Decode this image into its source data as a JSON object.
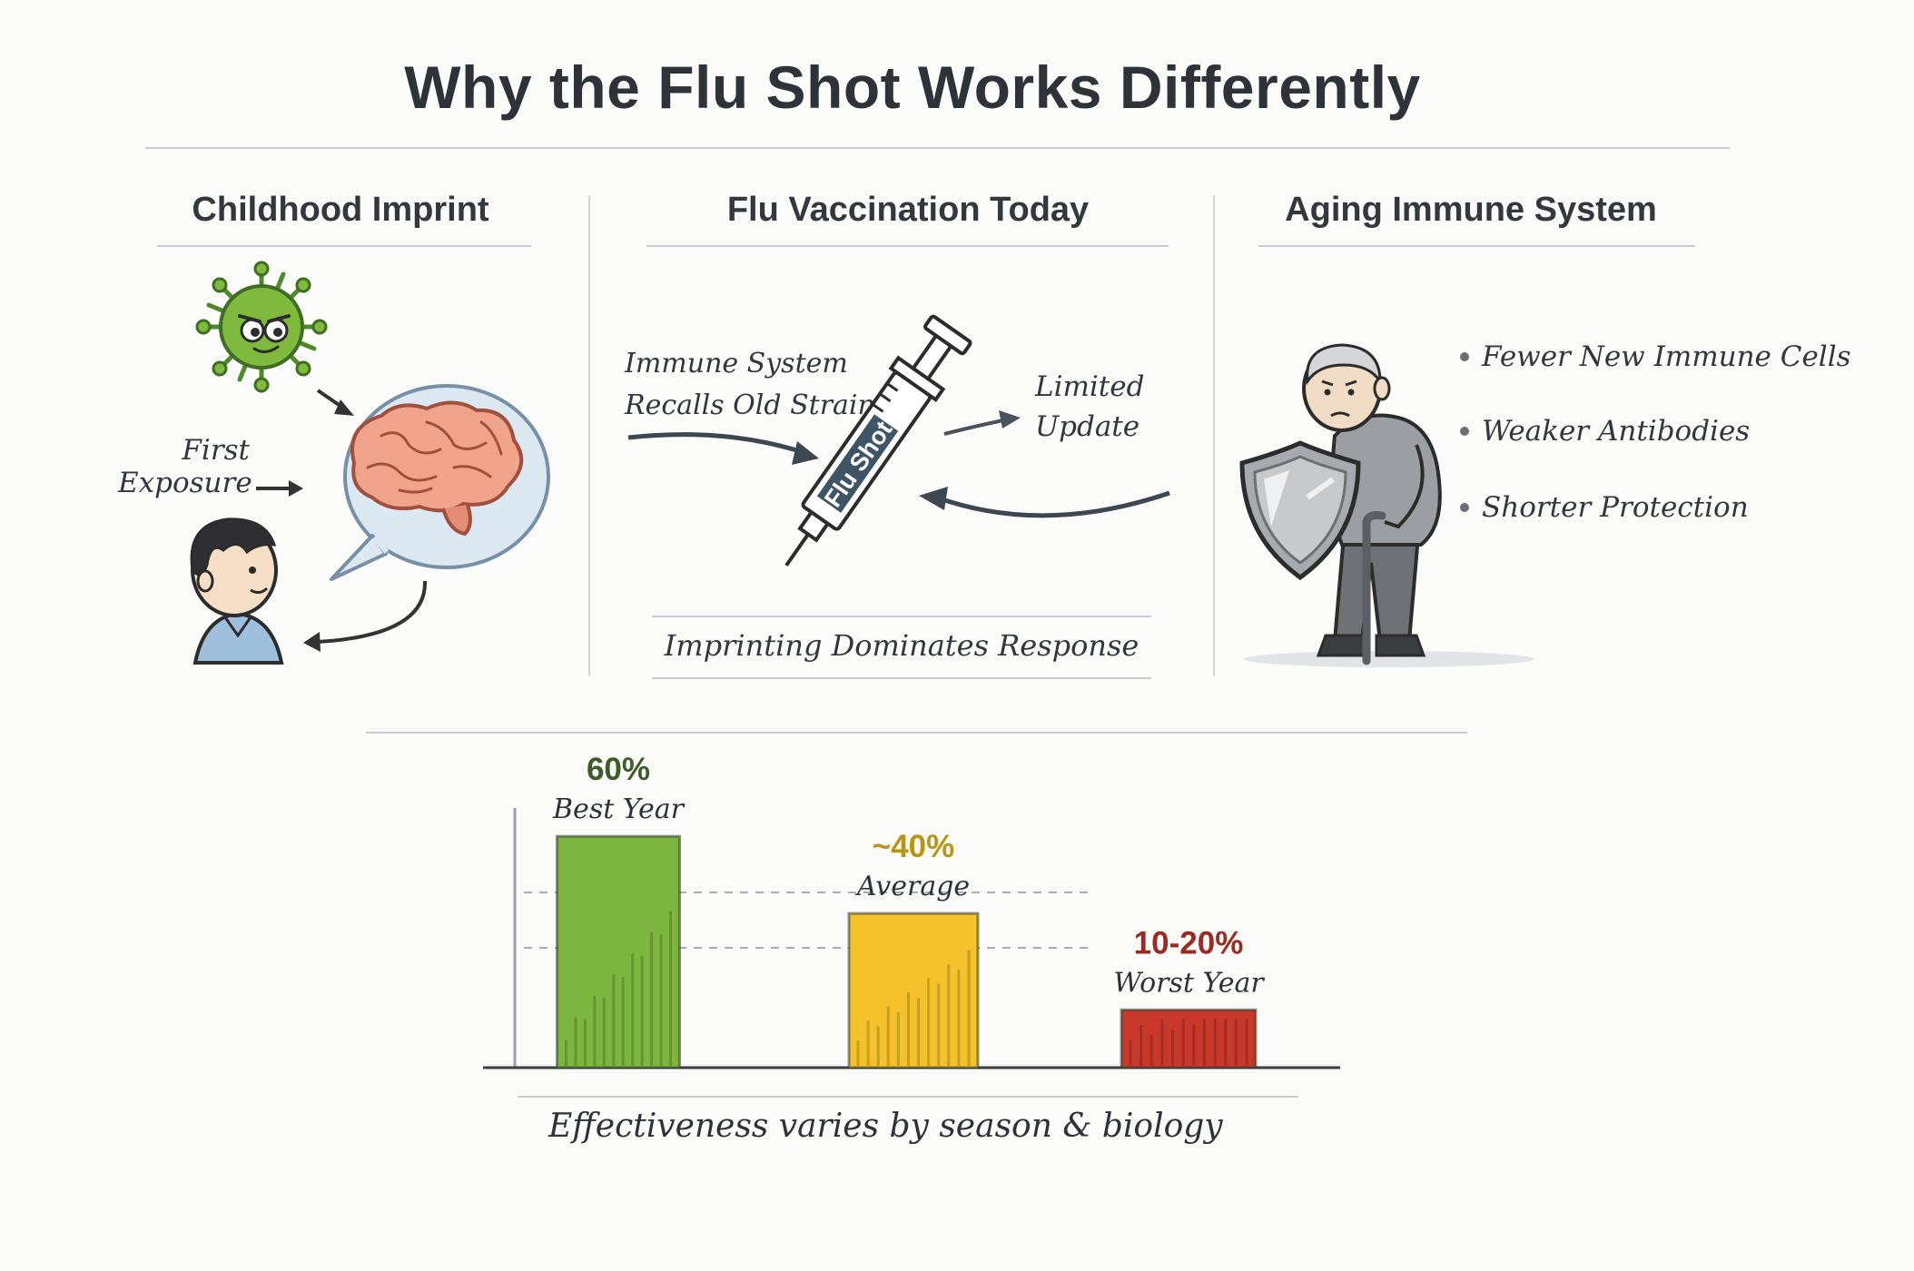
{
  "title": "Why the Flu Shot Works Differently",
  "panels": {
    "childhood": {
      "title": "Childhood Imprint",
      "first_exposure": [
        "First",
        "Exposure"
      ]
    },
    "vaccination": {
      "title": "Flu Vaccination Today",
      "recall_label": [
        "Immune System",
        "Recalls Old Strain"
      ],
      "limited_update": [
        "Limited",
        "Update"
      ],
      "syringe_label": "Flu Shot",
      "footer": "Imprinting Dominates Response"
    },
    "aging": {
      "title": "Aging Immune System",
      "bullets": [
        "Fewer New Immune Cells",
        "Weaker Antibodies",
        "Shorter Protection"
      ]
    }
  },
  "chart_data": {
    "type": "bar",
    "categories": [
      "Best Year",
      "Average",
      "Worst Year"
    ],
    "values": [
      60,
      40,
      15
    ],
    "value_labels": [
      "60%",
      "~40%",
      "10-20%"
    ],
    "colors": [
      "#7cb63f",
      "#f5c22c",
      "#c8382b"
    ],
    "label_colors": [
      "#3e5b2a",
      "#b89514",
      "#9b2a22"
    ],
    "ylim": [
      0,
      65
    ],
    "caption": "Effectiveness varies by season & biology"
  },
  "colors": {
    "virus": "#7fba3f",
    "brain": "#f0a48b",
    "bubble": "#dce9f3",
    "shirt": "#9fc0dd",
    "syringe_label_bg": "#3e5566"
  }
}
